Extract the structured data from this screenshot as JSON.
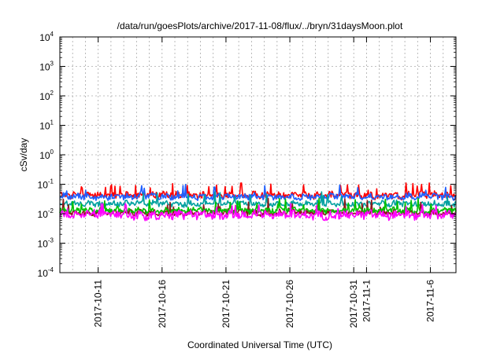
{
  "chart_data": {
    "type": "line",
    "title": "/data/run/goesPlots/archive/2017-11-08/flux/../bryn/31daysMoon.plot",
    "xlabel": "Coordinated Universal Time (UTC)",
    "ylabel": "cSv/day",
    "yscale": "log",
    "ylim": [
      0.0001,
      10000
    ],
    "xlim": [
      "2017-10-08",
      "2017-11-08"
    ],
    "grid": true,
    "y_ticks": [
      {
        "base": "10",
        "exp": "-4"
      },
      {
        "base": "10",
        "exp": "-3"
      },
      {
        "base": "10",
        "exp": "-2"
      },
      {
        "base": "10",
        "exp": "-1"
      },
      {
        "base": "10",
        "exp": "0"
      },
      {
        "base": "10",
        "exp": "1"
      },
      {
        "base": "10",
        "exp": "2"
      },
      {
        "base": "10",
        "exp": "3"
      },
      {
        "base": "10",
        "exp": "4"
      }
    ],
    "x_ticks": [
      {
        "date": "2017-10-11",
        "label": "2017-10-11"
      },
      {
        "date": "2017-10-16",
        "label": "2017-10-16"
      },
      {
        "date": "2017-10-21",
        "label": "2017-10-21"
      },
      {
        "date": "2017-10-26",
        "label": "2017-10-26"
      },
      {
        "date": "2017-10-31",
        "label": "2017-10-31"
      },
      {
        "date": "2017-11-01",
        "label": "2017-11-1"
      },
      {
        "date": "2017-11-06",
        "label": "2017-11-6"
      }
    ],
    "series": [
      {
        "color": "#ff0000",
        "base": 0.042,
        "spread": 0.25,
        "spike": 0.1
      },
      {
        "color": "#1f5fff",
        "base": 0.038,
        "spread": 0.22,
        "spike": 0.09
      },
      {
        "color": "#00a0a0",
        "base": 0.022,
        "spread": 0.2,
        "spike": 0.05
      },
      {
        "color": "#8b1a1a",
        "base": 0.011,
        "spread": 0.22,
        "spike": 0.03
      },
      {
        "color": "#00c000",
        "base": 0.013,
        "spread": 0.2,
        "spike": 0.03
      },
      {
        "color": "#ff00ff",
        "base": 0.009,
        "spread": 0.3,
        "spike": 0.02
      }
    ]
  }
}
